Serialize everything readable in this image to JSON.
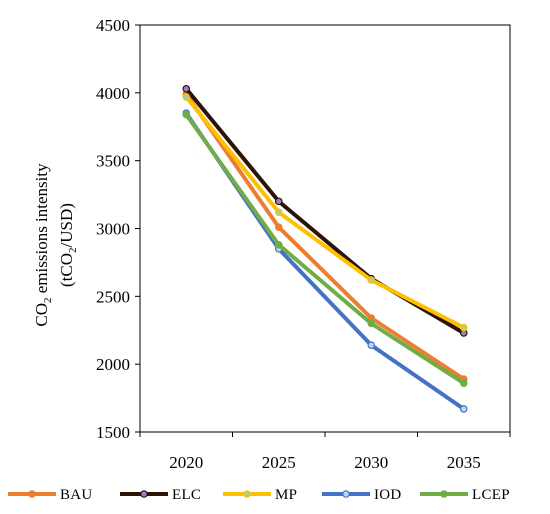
{
  "chart_data": {
    "type": "line",
    "x": [
      "2020",
      "2025",
      "2030",
      "2035"
    ],
    "ylabel_line1": "CO",
    "ylabel_line1_sub": "2",
    "ylabel_line1_rest": " emissions intensity",
    "ylabel_line2_pre": "(tCO",
    "ylabel_line2_sub": "2",
    "ylabel_line2_post": "/USD)",
    "ylim": [
      1500,
      4500
    ],
    "yticks": [
      "1500",
      "2000",
      "2500",
      "3000",
      "3500",
      "4000",
      "4500"
    ],
    "grid": false,
    "legend": "bottom",
    "series": [
      {
        "name": "BAU",
        "color": "#ED7D31",
        "marker": "#ED7D31",
        "values": [
          3990,
          3010,
          2340,
          1890
        ]
      },
      {
        "name": "ELC",
        "color": "#2B1308",
        "marker": "#9E80C0",
        "values": [
          4030,
          3200,
          2630,
          2230
        ]
      },
      {
        "name": "MP",
        "color": "#FFC000",
        "marker": "#A9D18E",
        "values": [
          3970,
          3120,
          2620,
          2270
        ]
      },
      {
        "name": "IOD",
        "color": "#4472C4",
        "marker": "#BDD7EE",
        "values": [
          3850,
          2850,
          2140,
          1670
        ]
      },
      {
        "name": "LCEP",
        "color": "#70AD47",
        "marker": "#70AD47",
        "values": [
          3840,
          2880,
          2300,
          1860
        ]
      }
    ]
  }
}
